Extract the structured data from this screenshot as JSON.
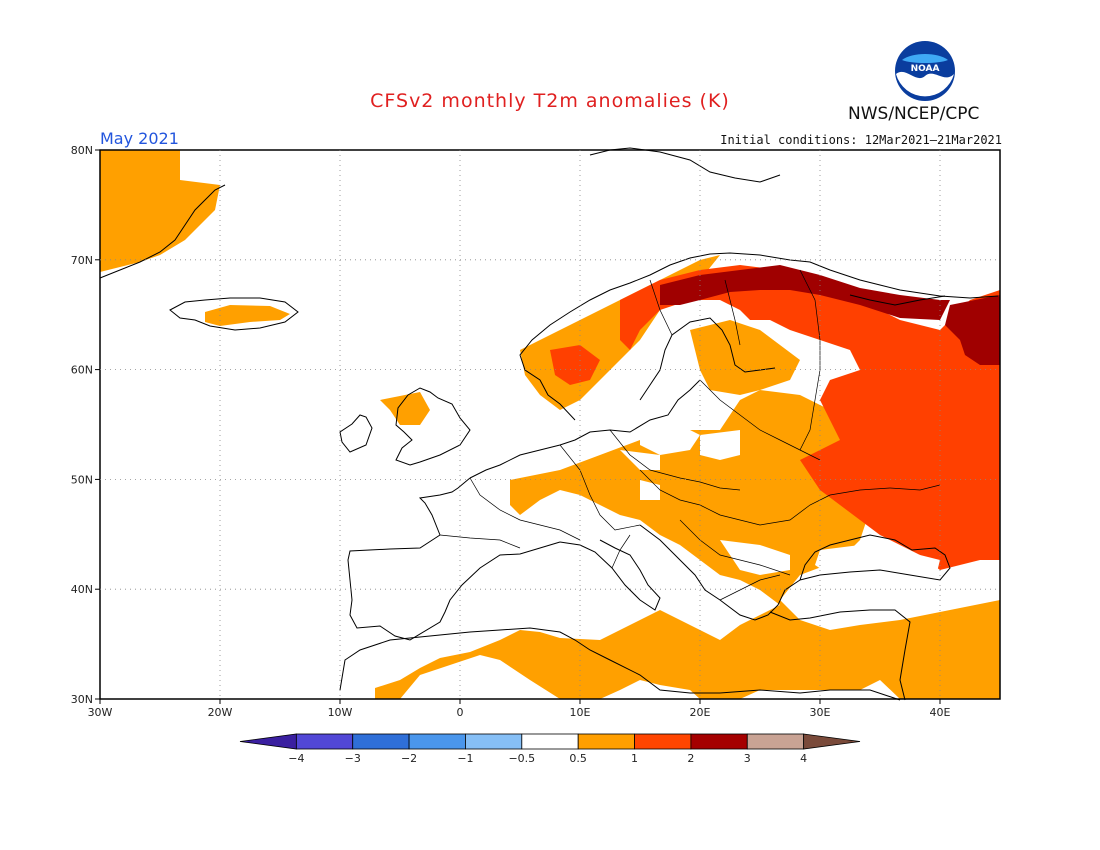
{
  "title": "CFSv2 monthly T2m anomalies (K)",
  "month": "May 2021",
  "initial_conditions": "Initial conditions: 12Mar2021–21Mar2021",
  "agency": "NWS/NCEP/CPC",
  "logo": {
    "text": "NOAA",
    "icon": "noaa-logo"
  },
  "map": {
    "lon_range": [
      -30,
      45
    ],
    "lat_range": [
      30,
      80
    ],
    "lon_ticks": [
      {
        "value": -30,
        "label": "30W"
      },
      {
        "value": -20,
        "label": "20W"
      },
      {
        "value": -10,
        "label": "10W"
      },
      {
        "value": 0,
        "label": "0"
      },
      {
        "value": 10,
        "label": "10E"
      },
      {
        "value": 20,
        "label": "20E"
      },
      {
        "value": 30,
        "label": "30E"
      },
      {
        "value": 40,
        "label": "40E"
      }
    ],
    "lat_ticks": [
      {
        "value": 30,
        "label": "30N"
      },
      {
        "value": 40,
        "label": "40N"
      },
      {
        "value": 50,
        "label": "50N"
      },
      {
        "value": 60,
        "label": "60N"
      },
      {
        "value": 70,
        "label": "70N"
      },
      {
        "value": 80,
        "label": "80N"
      }
    ],
    "grid": "dotted"
  },
  "colorbar": {
    "bins": [
      {
        "color": "#3a1fa0"
      },
      {
        "color": "#5147d6"
      },
      {
        "color": "#2f6fd8"
      },
      {
        "color": "#4a96ec"
      },
      {
        "color": "#86bff6"
      },
      {
        "color": "#ffffff"
      },
      {
        "color": "#ff9f00"
      },
      {
        "color": "#ff4500"
      },
      {
        "color": "#a50000"
      },
      {
        "color": "#c9a394"
      },
      {
        "color": "#7a4a3a"
      }
    ],
    "labels": [
      "−4",
      "−3",
      "−2",
      "−1",
      "−0.5",
      "0.5",
      "1",
      "2",
      "3",
      "4"
    ]
  },
  "anomaly_colors": {
    "c1": "#ffa000",
    "c2": "#ff4000",
    "c3": "#a00000"
  }
}
